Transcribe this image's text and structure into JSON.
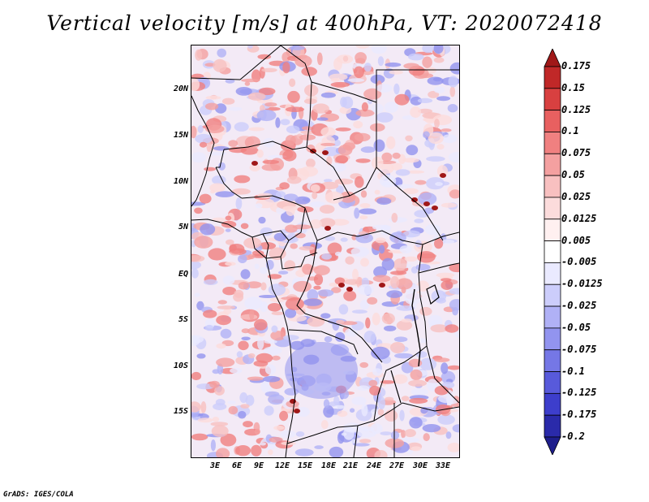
{
  "title": "Vertical velocity [m/s] at 400hPa, VT: 2020072418",
  "credit": "GrADS: IGES/COLA",
  "map": {
    "lat_labels": [
      "20N",
      "15N",
      "10N",
      "5N",
      "EQ",
      "5S",
      "10S",
      "15S"
    ],
    "lon_labels": [
      "3E",
      "6E",
      "9E",
      "12E",
      "15E",
      "18E",
      "21E",
      "24E",
      "27E",
      "30E",
      "33E"
    ]
  },
  "colorbar": {
    "labels": [
      "0.175",
      "0.15",
      "0.125",
      "0.1",
      "0.075",
      "0.05",
      "0.025",
      "0.0125",
      "0.005",
      "-0.005",
      "-0.0125",
      "-0.025",
      "-0.05",
      "-0.075",
      "-0.1",
      "-0.125",
      "-0.175",
      "-0.2"
    ],
    "colors": [
      "#a01818",
      "#c02828",
      "#d84040",
      "#e86060",
      "#f08080",
      "#f4a0a0",
      "#f8c0c0",
      "#fcdcdc",
      "#fff0f0",
      "#ffffff",
      "#eaeaff",
      "#cccdfb",
      "#b0b1f6",
      "#9294ef",
      "#7577e6",
      "#585adb",
      "#3d3ecc",
      "#2a2aaa",
      "#1e1e8c"
    ]
  }
}
